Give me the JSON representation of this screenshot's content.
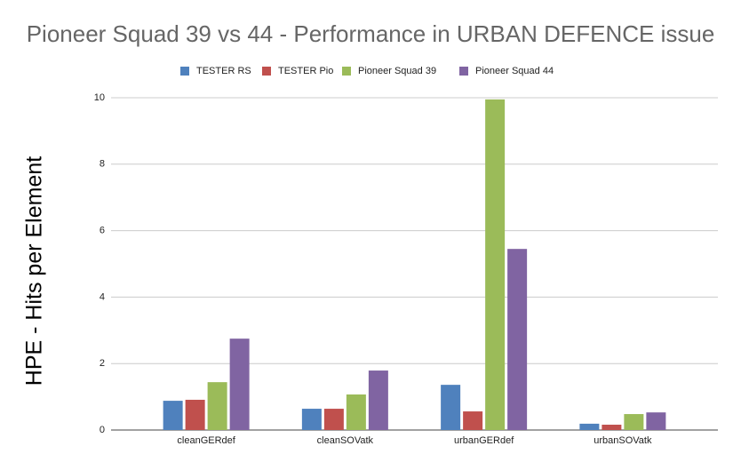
{
  "chart_data": {
    "type": "bar",
    "title": "Pioneer Squad 39 vs 44 - Performance in URBAN DEFENCE issue",
    "y_label": "HPE - Hits per Element",
    "categories": [
      "cleanGERdef",
      "cleanSOVatk",
      "urbanGERdef",
      "urbanSOVatk"
    ],
    "series": [
      {
        "name": "TESTER RS",
        "color": "#4f81bd",
        "values": [
          0.88,
          0.64,
          1.36,
          0.19
        ]
      },
      {
        "name": "TESTER Pio",
        "color": "#c0504d",
        "values": [
          0.91,
          0.64,
          0.56,
          0.16
        ]
      },
      {
        "name": "Pioneer Squad 39",
        "color": "#9bbb59",
        "values": [
          1.44,
          1.07,
          9.95,
          0.48
        ]
      },
      {
        "name": "Pioneer Squad 44",
        "color": "#8064a2",
        "values": [
          2.75,
          1.79,
          5.45,
          0.53
        ]
      }
    ],
    "ylim": [
      0,
      10
    ],
    "yticks": [
      0,
      2,
      4,
      6,
      8,
      10
    ],
    "grid": true,
    "legend": "top"
  }
}
